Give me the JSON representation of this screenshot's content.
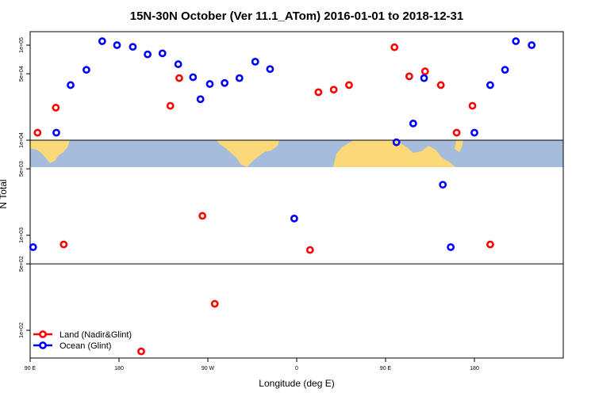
{
  "chart_data": {
    "type": "scatter",
    "title": "15N-30N October (Ver 11.1_ATom)   2016-01-01 to 2018-12-31",
    "xlabel": "Longitude (deg E)",
    "ylabel": "N Total",
    "log_scale_y": true,
    "ylim": [
      60,
      140000
    ],
    "xticks": [
      {
        "value": 90,
        "label": "90 E"
      },
      {
        "value": 180,
        "label": "180"
      },
      {
        "value": 270,
        "label": "90 W"
      },
      {
        "value": 360,
        "label": "0"
      },
      {
        "value": 450,
        "label": "90 E"
      },
      {
        "value": 540,
        "label": "180"
      }
    ],
    "yticks": [
      {
        "value": 100,
        "label": "1e+02"
      },
      {
        "value": 500,
        "label": "5e+02"
      },
      {
        "value": 1000,
        "label": "1e+03"
      },
      {
        "value": 5000,
        "label": "5e+03"
      },
      {
        "value": 10000,
        "label": "1e+04"
      },
      {
        "value": 50000,
        "label": "5e+04"
      },
      {
        "value": 100000,
        "label": "1e+05"
      }
    ],
    "horizontal_lines": [
      500,
      10000
    ],
    "series": [
      {
        "name": "Land (Nadir&Glint)",
        "color": "#ff0000",
        "points": [
          {
            "x": 97.5,
            "y": 12000
          },
          {
            "x": 116,
            "y": 22000
          },
          {
            "x": 124,
            "y": 800
          },
          {
            "x": 202.5,
            "y": 60
          },
          {
            "x": 232,
            "y": 23000
          },
          {
            "x": 241,
            "y": 45000
          },
          {
            "x": 264.5,
            "y": 1600
          },
          {
            "x": 277,
            "y": 190
          },
          {
            "x": 373.5,
            "y": 700
          },
          {
            "x": 382,
            "y": 32000
          },
          {
            "x": 397.5,
            "y": 34000
          },
          {
            "x": 413,
            "y": 38000
          },
          {
            "x": 459,
            "y": 95000
          },
          {
            "x": 474,
            "y": 47000
          },
          {
            "x": 490,
            "y": 53000
          },
          {
            "x": 506,
            "y": 38000
          },
          {
            "x": 522,
            "y": 12000
          },
          {
            "x": 538,
            "y": 23000
          },
          {
            "x": 556,
            "y": 800
          }
        ]
      },
      {
        "name": "Ocean (Glint)",
        "color": "#0000ff",
        "points": [
          {
            "x": 93,
            "y": 750
          },
          {
            "x": 116.5,
            "y": 12000
          },
          {
            "x": 131,
            "y": 38000
          },
          {
            "x": 147,
            "y": 55000
          },
          {
            "x": 163,
            "y": 110000
          },
          {
            "x": 178,
            "y": 100000
          },
          {
            "x": 194,
            "y": 96000
          },
          {
            "x": 209,
            "y": 80000
          },
          {
            "x": 224,
            "y": 82000
          },
          {
            "x": 240,
            "y": 63000
          },
          {
            "x": 255,
            "y": 46000
          },
          {
            "x": 262.5,
            "y": 27000
          },
          {
            "x": 272,
            "y": 39000
          },
          {
            "x": 287,
            "y": 40000
          },
          {
            "x": 302,
            "y": 45000
          },
          {
            "x": 318,
            "y": 67000
          },
          {
            "x": 333,
            "y": 56000
          },
          {
            "x": 357.5,
            "y": 1500
          },
          {
            "x": 461,
            "y": 9500
          },
          {
            "x": 478,
            "y": 15000
          },
          {
            "x": 489,
            "y": 45000
          },
          {
            "x": 508,
            "y": 3400
          },
          {
            "x": 516,
            "y": 750
          },
          {
            "x": 540,
            "y": 12000
          },
          {
            "x": 556,
            "y": 38000
          },
          {
            "x": 571,
            "y": 55000
          },
          {
            "x": 582,
            "y": 110000
          },
          {
            "x": 598,
            "y": 100000
          }
        ]
      }
    ]
  }
}
